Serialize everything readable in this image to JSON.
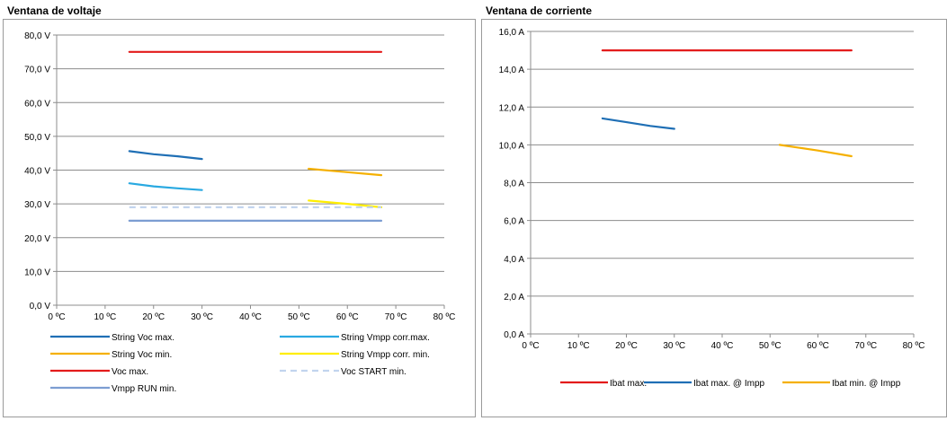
{
  "voltage_panel": {
    "title": "Ventana de voltaje"
  },
  "current_panel": {
    "title": "Ventana de corriente"
  },
  "chart_data": [
    {
      "type": "line",
      "title": "Ventana de voltaje",
      "xlabel": "",
      "ylabel": "",
      "x_ticks": [
        "0 ºC",
        "10 ºC",
        "20 ºC",
        "30 ºC",
        "40 ºC",
        "50 ºC",
        "60 ºC",
        "70 ºC",
        "80 ºC"
      ],
      "y_ticks": [
        "0,0 V",
        "10,0 V",
        "20,0 V",
        "30,0 V",
        "40,0 V",
        "50,0 V",
        "60,0 V",
        "70,0 V",
        "80,0 V"
      ],
      "xlim": [
        0,
        80
      ],
      "ylim": [
        0,
        80
      ],
      "grid": "horizontal",
      "legend_position": "bottom",
      "series": [
        {
          "name": "String Voc max.",
          "color": "#1F6FB5",
          "dash": false,
          "points": [
            [
              15,
              45.6
            ],
            [
              20,
              44.7
            ],
            [
              25,
              44.1
            ],
            [
              30,
              43.3
            ]
          ]
        },
        {
          "name": "String Vmpp corr.max.",
          "color": "#29A9E1",
          "dash": false,
          "points": [
            [
              15,
              36.1
            ],
            [
              20,
              35.2
            ],
            [
              25,
              34.6
            ],
            [
              30,
              34.1
            ]
          ]
        },
        {
          "name": "String Voc min.",
          "color": "#F5B000",
          "dash": false,
          "points": [
            [
              52,
              40.4
            ],
            [
              60,
              39.4
            ],
            [
              67,
              38.5
            ]
          ]
        },
        {
          "name": "String Vmpp corr. min.",
          "color": "#FFEE00",
          "dash": false,
          "points": [
            [
              52,
              31
            ],
            [
              60,
              30
            ],
            [
              67,
              29
            ]
          ]
        },
        {
          "name": "Voc max.",
          "color": "#E31B1B",
          "dash": false,
          "points": [
            [
              15,
              75
            ],
            [
              67,
              75
            ]
          ]
        },
        {
          "name": "Voc START min.",
          "color": "#C2D4EE",
          "dash": true,
          "points": [
            [
              15,
              29
            ],
            [
              67,
              29
            ]
          ]
        },
        {
          "name": "Vmpp RUN min.",
          "color": "#7C9DD2",
          "dash": false,
          "points": [
            [
              15,
              25
            ],
            [
              67,
              25
            ]
          ]
        }
      ]
    },
    {
      "type": "line",
      "title": "Ventana de corriente",
      "xlabel": "",
      "ylabel": "",
      "x_ticks": [
        "0 ºC",
        "10 ºC",
        "20 ºC",
        "30 ºC",
        "40 ºC",
        "50 ºC",
        "60 ºC",
        "70 ºC",
        "80 ºC"
      ],
      "y_ticks": [
        "0,0 A",
        "2,0 A",
        "4,0 A",
        "6,0 A",
        "8,0 A",
        "10,0 A",
        "12,0 A",
        "14,0 A",
        "16,0 A"
      ],
      "xlim": [
        0,
        80
      ],
      "ylim": [
        0,
        16
      ],
      "grid": "horizontal",
      "legend_position": "bottom",
      "series": [
        {
          "name": "Ibat max.",
          "color": "#E31B1B",
          "dash": false,
          "points": [
            [
              15,
              15
            ],
            [
              67,
              15
            ]
          ]
        },
        {
          "name": "Ibat max. @ Impp",
          "color": "#1F6FB5",
          "dash": false,
          "points": [
            [
              15,
              11.4
            ],
            [
              20,
              11.2
            ],
            [
              25,
              11
            ],
            [
              30,
              10.85
            ]
          ]
        },
        {
          "name": "Ibat min. @ Impp",
          "color": "#F5B000",
          "dash": false,
          "points": [
            [
              52,
              10
            ],
            [
              60,
              9.7
            ],
            [
              67,
              9.4
            ]
          ]
        }
      ]
    }
  ]
}
